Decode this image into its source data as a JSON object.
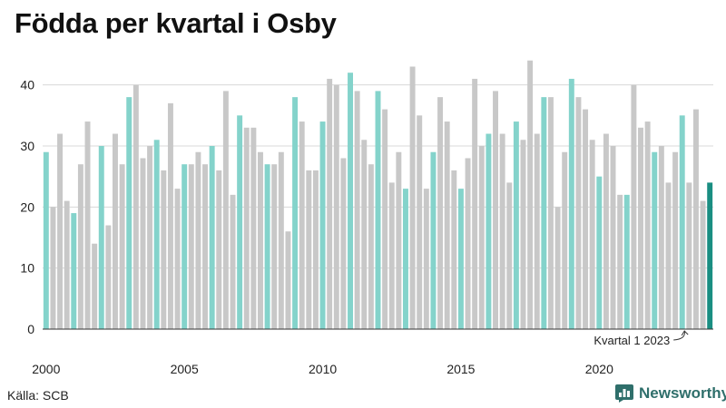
{
  "title": "Födda per kvartal i Osby",
  "source": "Källa: SCB",
  "brand": {
    "name": "Newsworthy",
    "icon": "bar-chart-logo-icon"
  },
  "colors": {
    "q1": "#84d3cb",
    "other": "#c8c8c8",
    "highlight": "#1a8e82",
    "text": "#111111",
    "grid": "#d8d8d8",
    "brand": "#2f6f6b"
  },
  "chart_data": {
    "type": "bar",
    "title": "Födda per kvartal i Osby",
    "xlabel": "",
    "ylabel": "",
    "ylim": [
      0,
      45
    ],
    "yticks": [
      0,
      10,
      20,
      30,
      40
    ],
    "x_tick_labels": [
      "2000",
      "2005",
      "2010",
      "2015",
      "2020"
    ],
    "grid": true,
    "start_year": 2000,
    "values": [
      29,
      20,
      32,
      21,
      19,
      27,
      34,
      14,
      30,
      17,
      32,
      27,
      38,
      40,
      28,
      30,
      31,
      26,
      37,
      23,
      27,
      27,
      29,
      27,
      30,
      26,
      39,
      22,
      35,
      33,
      33,
      29,
      27,
      27,
      29,
      16,
      38,
      34,
      26,
      26,
      34,
      41,
      40,
      28,
      42,
      39,
      31,
      27,
      39,
      36,
      24,
      29,
      23,
      43,
      35,
      23,
      29,
      38,
      34,
      26,
      23,
      28,
      41,
      30,
      32,
      39,
      32,
      24,
      34,
      31,
      44,
      32,
      38,
      38,
      20,
      29,
      41,
      38,
      36,
      31,
      25,
      32,
      30,
      22,
      22,
      40,
      33,
      34,
      29,
      30,
      24,
      29,
      35,
      24,
      36,
      21,
      24
    ],
    "annotation": {
      "text": "Kvartal 1 2023",
      "target": "last"
    }
  }
}
